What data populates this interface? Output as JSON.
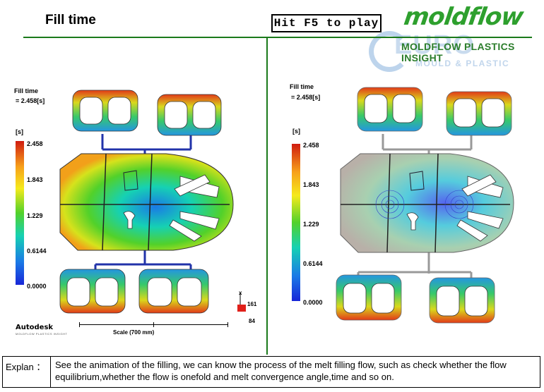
{
  "header": {
    "title": "Fill time",
    "play_hint": "Hit F5 to play"
  },
  "logo": {
    "brand": "moldflow",
    "subtitle": "MOLDFLOW PLASTICS INSIGHT",
    "watermark": "EURO",
    "watermark_sub": "MOULD & PLASTIC",
    "brand_color": "#2ea02e",
    "watermark_color": "#b7cfe9"
  },
  "left_panel": {
    "result_name": "Fill time",
    "result_value": "= 2.458[s]",
    "unit": "[s]",
    "legend_ticks": [
      "2.458",
      "1.843",
      "1.229",
      "0.6144",
      "0.0000"
    ],
    "vendor": "Autodesk",
    "vendor_sub": "MOLDFLOW PLASTICS INSIGHT",
    "scale_label": "Scale (700 mm)",
    "axis": {
      "x_label": "x",
      "value_1": "161",
      "value_2": "84"
    }
  },
  "right_panel": {
    "result_name": "Fill time",
    "result_value": "= 2.458[s]",
    "unit": "[s]",
    "legend_ticks": [
      "2.458",
      "1.843",
      "1.229",
      "0.6144",
      "0.0000"
    ]
  },
  "explanation": {
    "label": "Explan ：",
    "text": "See the animation of the filling, we can know the process of the melt filling flow, such as check whether the flow equilibrium,whether the flow is onefold and melt convergence angle,time and so on."
  },
  "colors": {
    "divider": "#1b7a1b",
    "runner": "#2233aa",
    "fill_hot": "#d01c10",
    "fill_mid": "#52d12a",
    "fill_cold": "#1826d8"
  }
}
